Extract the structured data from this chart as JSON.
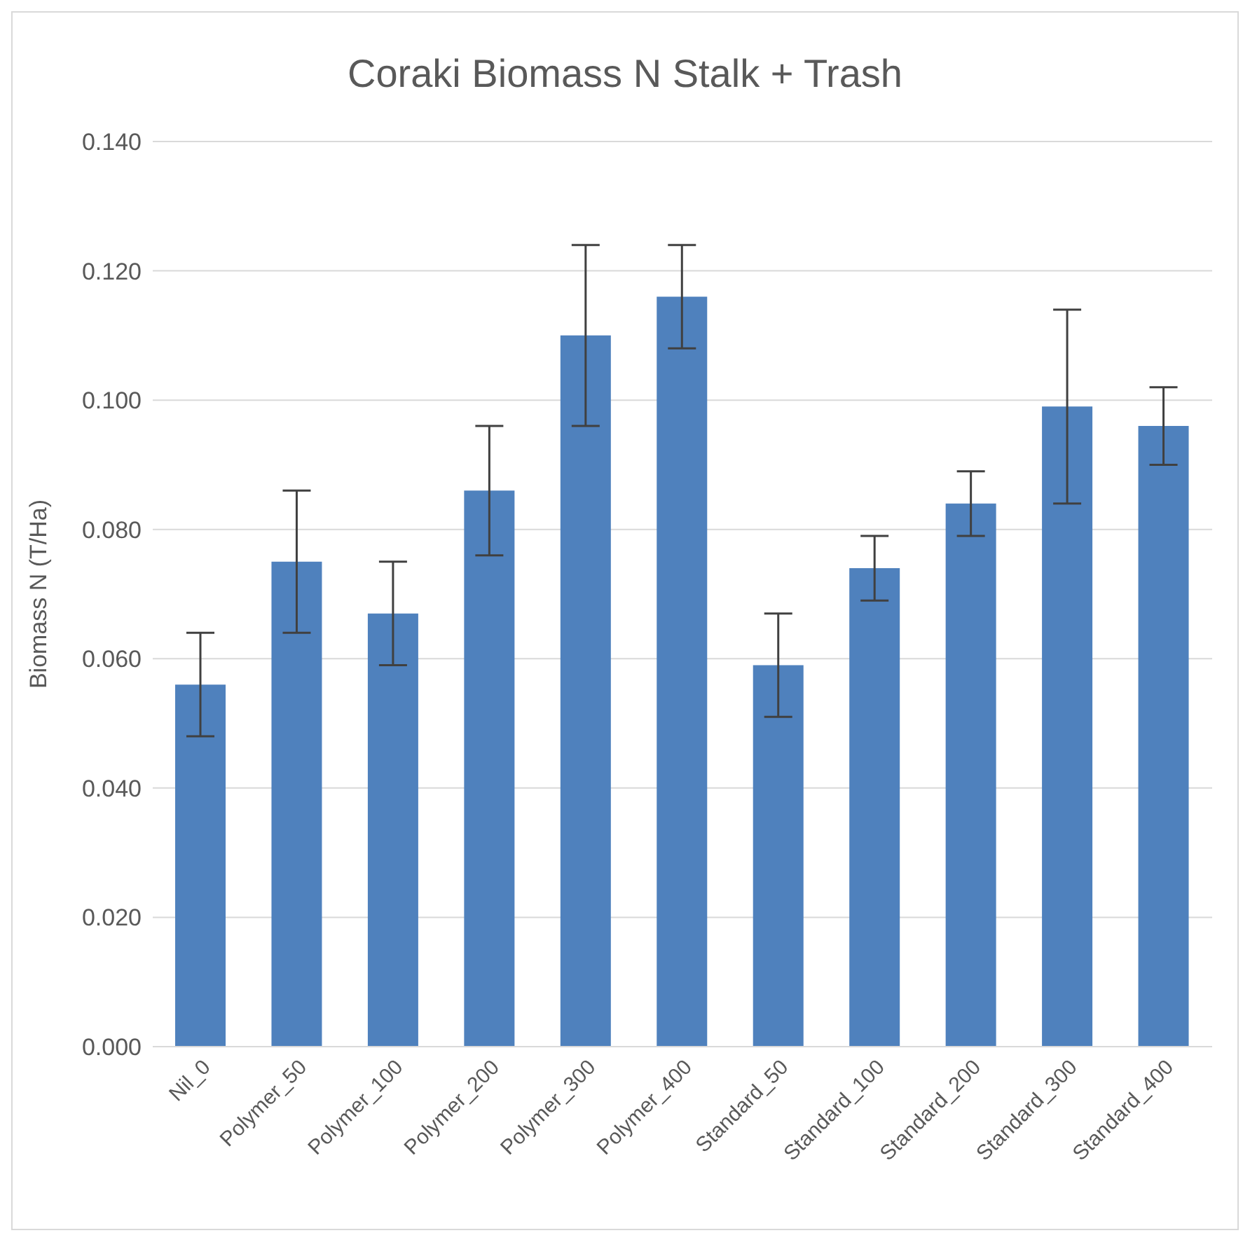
{
  "chart_data": {
    "type": "bar",
    "title": "Coraki Biomass N Stalk + Trash",
    "ylabel": "Biomass N (T/Ha)",
    "categories": [
      "Nil_0",
      "Polymer_50",
      "Polymer_100",
      "Polymer_200",
      "Polymer_300",
      "Polymer_400",
      "Standard_50",
      "Standard_100",
      "Standard_200",
      "Standard_300",
      "Standard_400"
    ],
    "values": [
      0.056,
      0.075,
      0.067,
      0.086,
      0.11,
      0.116,
      0.059,
      0.074,
      0.084,
      0.099,
      0.096
    ],
    "errors": [
      0.008,
      0.011,
      0.008,
      0.01,
      0.014,
      0.008,
      0.008,
      0.005,
      0.005,
      0.015,
      0.006
    ],
    "color": "#4f81bd",
    "ylim": [
      0,
      0.14
    ],
    "yticks": [
      {
        "value": 0,
        "label": "0.000"
      },
      {
        "value": 0.02,
        "label": "0.020"
      },
      {
        "value": 0.04,
        "label": "0.040"
      },
      {
        "value": 0.06,
        "label": "0.060"
      },
      {
        "value": 0.08,
        "label": "0.080"
      },
      {
        "value": 0.1,
        "label": "0.100"
      },
      {
        "value": 0.12,
        "label": "0.120"
      },
      {
        "value": 0.14,
        "label": "0.140"
      }
    ],
    "grid": "y",
    "legend": false
  }
}
